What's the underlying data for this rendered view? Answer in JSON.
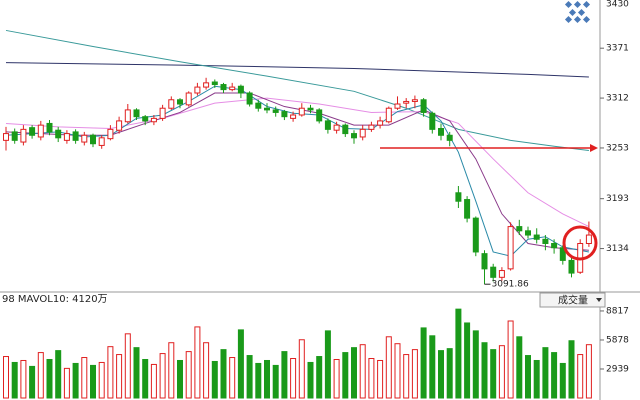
{
  "chart_data": {
    "type": "candlestick",
    "open": [
      3262,
      3272,
      3260,
      3277,
      3266,
      3282,
      3274,
      3262,
      3272,
      3260,
      3268,
      3256,
      3264,
      3274,
      3284,
      3298,
      3290,
      3284,
      3288,
      3300,
      3310,
      3304,
      3318,
      3325,
      3331,
      3328,
      3322,
      3326,
      3318,
      3306,
      3300,
      3298,
      3296,
      3288,
      3292,
      3300,
      3298,
      3285,
      3274,
      3280,
      3270,
      3266,
      3275,
      3280,
      3284,
      3300,
      3306,
      3308,
      3310,
      3294,
      3276,
      3268,
      3200,
      3192,
      3170,
      3128,
      3112,
      3100,
      3110,
      3160,
      3155,
      3150,
      3145,
      3140,
      3135,
      3120,
      3106,
      3140
    ],
    "high": [
      3278,
      3276,
      3280,
      3280,
      3285,
      3286,
      3278,
      3274,
      3275,
      3272,
      3270,
      3268,
      3280,
      3290,
      3305,
      3300,
      3292,
      3292,
      3304,
      3314,
      3312,
      3320,
      3330,
      3336,
      3334,
      3330,
      3330,
      3328,
      3320,
      3310,
      3306,
      3302,
      3298,
      3296,
      3306,
      3304,
      3300,
      3288,
      3284,
      3282,
      3274,
      3280,
      3284,
      3290,
      3302,
      3314,
      3312,
      3315,
      3312,
      3296,
      3282,
      3272,
      3208,
      3196,
      3172,
      3132,
      3116,
      3112,
      3165,
      3168,
      3160,
      3158,
      3150,
      3145,
      3138,
      3124,
      3145,
      3166
    ],
    "low": [
      3250,
      3258,
      3256,
      3264,
      3262,
      3268,
      3260,
      3258,
      3258,
      3256,
      3254,
      3252,
      3262,
      3270,
      3282,
      3286,
      3280,
      3280,
      3285,
      3298,
      3300,
      3302,
      3315,
      3322,
      3324,
      3318,
      3320,
      3312,
      3302,
      3296,
      3294,
      3290,
      3286,
      3284,
      3290,
      3294,
      3282,
      3270,
      3270,
      3266,
      3258,
      3262,
      3272,
      3276,
      3282,
      3298,
      3300,
      3300,
      3290,
      3270,
      3262,
      3255,
      3182,
      3165,
      3125,
      3091.86,
      3095,
      3096,
      3108,
      3150,
      3146,
      3140,
      3132,
      3128,
      3115,
      3100,
      3104,
      3136
    ],
    "close": [
      3270,
      3262,
      3275,
      3268,
      3280,
      3272,
      3265,
      3270,
      3262,
      3268,
      3258,
      3265,
      3275,
      3285,
      3298,
      3290,
      3285,
      3288,
      3300,
      3310,
      3305,
      3318,
      3325,
      3330,
      3328,
      3322,
      3325,
      3318,
      3305,
      3300,
      3298,
      3295,
      3290,
      3292,
      3300,
      3298,
      3285,
      3275,
      3280,
      3270,
      3265,
      3275,
      3280,
      3285,
      3300,
      3305,
      3308,
      3310,
      3295,
      3275,
      3268,
      3262,
      3190,
      3170,
      3130,
      3110,
      3100,
      3108,
      3160,
      3155,
      3150,
      3145,
      3140,
      3135,
      3120,
      3105,
      3140,
      3150
    ],
    "up_color": "#e02020",
    "down_color": "#1a9a1a",
    "ylim": [
      3085,
      3428
    ],
    "yticks": [
      3430,
      3371,
      3312,
      3253,
      3193,
      3134
    ],
    "ma_lines": [
      {
        "color": "#2e3468",
        "x": [
          0,
          20,
          40,
          60,
          67
        ],
        "values": [
          3354,
          3351,
          3347,
          3340,
          3337
        ]
      },
      {
        "color": "#3a9a9a",
        "x": [
          0,
          10,
          20,
          30,
          40,
          46,
          52,
          58,
          63,
          67
        ],
        "values": [
          3392,
          3373,
          3355,
          3338,
          3320,
          3300,
          3275,
          3262,
          3255,
          3250
        ]
      },
      {
        "color": "#e58ee5",
        "x": [
          0,
          6,
          12,
          18,
          24,
          30,
          36,
          42,
          48,
          52,
          56,
          60,
          64,
          67
        ],
        "values": [
          3282,
          3278,
          3276,
          3288,
          3306,
          3312,
          3305,
          3295,
          3296,
          3282,
          3240,
          3200,
          3175,
          3160
        ]
      },
      {
        "color": "#8a3a8a",
        "x": [
          0,
          4,
          8,
          12,
          16,
          20,
          24,
          28,
          32,
          36,
          40,
          44,
          48,
          51,
          54,
          57,
          60,
          63,
          67
        ],
        "values": [
          3272,
          3270,
          3268,
          3268,
          3282,
          3295,
          3318,
          3318,
          3302,
          3294,
          3280,
          3280,
          3298,
          3285,
          3240,
          3175,
          3140,
          3135,
          3132
        ]
      },
      {
        "color": "#2a8aa8",
        "x": [
          0,
          3,
          6,
          9,
          12,
          15,
          18,
          21,
          24,
          27,
          30,
          33,
          36,
          39,
          42,
          45,
          48,
          50,
          52,
          54,
          56,
          58,
          60,
          62,
          64,
          67
        ],
        "values": [
          3268,
          3270,
          3272,
          3266,
          3268,
          3288,
          3292,
          3308,
          3326,
          3322,
          3302,
          3294,
          3292,
          3276,
          3275,
          3296,
          3304,
          3285,
          3248,
          3190,
          3130,
          3125,
          3145,
          3148,
          3136,
          3130
        ]
      }
    ],
    "reference_line": {
      "value": 3253,
      "color": "#e02020"
    },
    "min_label": "3091.86",
    "volume": {
      "values": [
        4200,
        3600,
        3800,
        3200,
        4600,
        3900,
        4800,
        3000,
        3500,
        4100,
        3300,
        3600,
        5200,
        4400,
        6500,
        5100,
        3900,
        3400,
        4500,
        5600,
        3800,
        4700,
        7200,
        5600,
        3700,
        4900,
        4100,
        6900,
        4300,
        3500,
        3800,
        3300,
        4700,
        4000,
        5900,
        3600,
        4200,
        6800,
        3900,
        4600,
        5100,
        5400,
        4000,
        3800,
        6200,
        5500,
        4400,
        4900,
        7100,
        6300,
        4800,
        5000,
        9000,
        7600,
        6800,
        5600,
        4900,
        5300,
        7800,
        6200,
        4300,
        3800,
        5100,
        4600,
        3500,
        5800,
        4400,
        5400
      ],
      "ylim": [
        0,
        9420
      ],
      "yticks": [
        8817,
        5878,
        2939
      ]
    },
    "volume_legend": "98 MAVOL10: 4120万",
    "volume_selector": "成交量"
  }
}
